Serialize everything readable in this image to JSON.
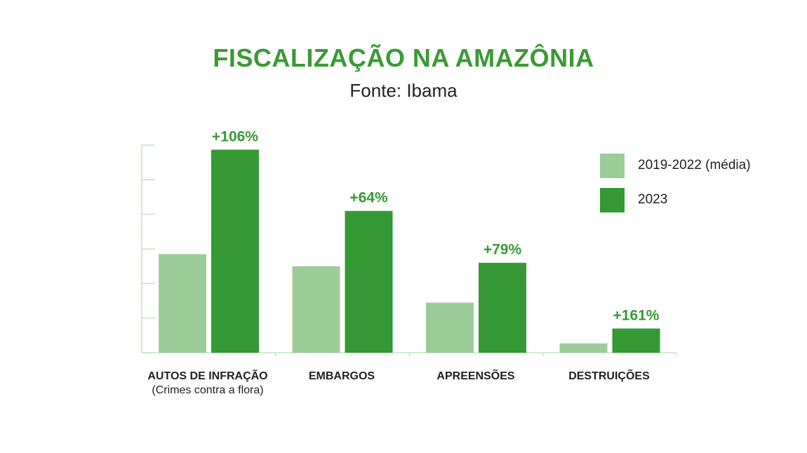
{
  "colors": {
    "series1": "#9ccd99",
    "series2": "#359a35",
    "title": "#3a9a35",
    "axis": "#c4e3c1"
  },
  "chart_data": {
    "type": "bar",
    "title": "FISCALIZAÇÃO NA AMAZÔNIA",
    "subtitle": "Fonte: Ibama",
    "categories": [
      "AUTOS DE INFRAÇÃO",
      "EMBARGOS",
      "APREENSÕES",
      "DESTRUIÇÕES"
    ],
    "category_notes": [
      "(Crimes contra a flora)",
      "",
      "",
      ""
    ],
    "series": [
      {
        "name": "2019-2022 (média)",
        "values": [
          2.85,
          2.5,
          1.45,
          0.27
        ]
      },
      {
        "name": "2023",
        "values": [
          5.87,
          4.1,
          2.6,
          0.7
        ]
      }
    ],
    "annotations": [
      "+106%",
      "+64%",
      "+79%",
      "+161%"
    ],
    "ylim": [
      0,
      6
    ],
    "legend_position": "top-right",
    "xlabel": "",
    "ylabel": ""
  }
}
